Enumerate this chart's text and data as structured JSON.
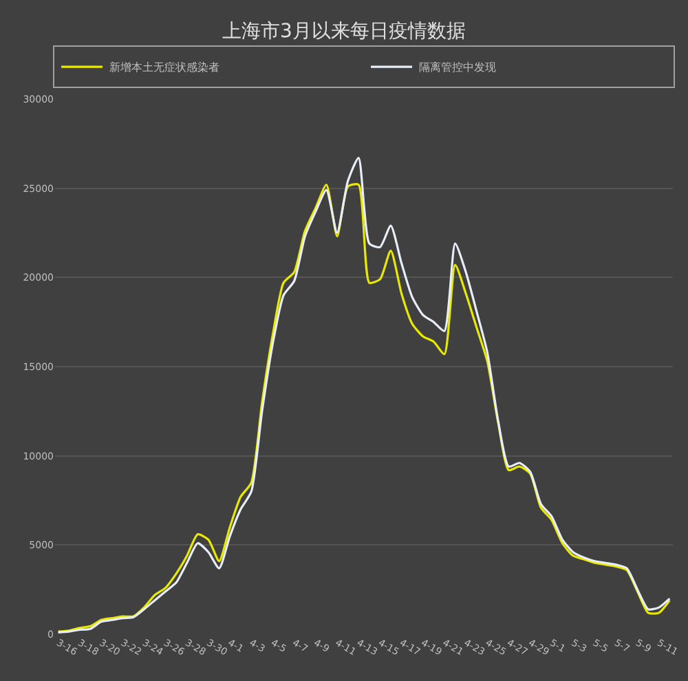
{
  "chart_data": {
    "type": "line",
    "title": "上海市3月以来每日疫情数据",
    "categories": [
      "3-16",
      null,
      "3-18",
      null,
      "3-20",
      null,
      "3-22",
      null,
      "3-24",
      null,
      "3-26",
      null,
      "3-28",
      null,
      "3-30",
      null,
      "4-1",
      null,
      "4-3",
      null,
      "4-5",
      null,
      "4-7",
      null,
      "4-9",
      null,
      "4-11",
      null,
      "4-13",
      null,
      "4-15",
      null,
      "4-17",
      null,
      "4-19",
      null,
      "4-21",
      null,
      "4-23",
      null,
      "4-25",
      null,
      "4-27",
      null,
      "4-29",
      null,
      "5-1",
      null,
      "5-3",
      null,
      "5-5",
      null,
      "5-7",
      null,
      "5-9",
      null,
      "5-11",
      null
    ],
    "series": [
      {
        "name": "新增本土无症状感染者",
        "color": "#e8e800",
        "values": [
          150,
          200,
          350,
          450,
          800,
          900,
          1000,
          1000,
          1500,
          2200,
          2600,
          3400,
          4400,
          5600,
          5300,
          4100,
          6000,
          7700,
          8500,
          13000,
          16800,
          19700,
          20300,
          22600,
          23900,
          25200,
          22300,
          25100,
          25200,
          19700,
          19900,
          21500,
          19100,
          17400,
          16700,
          16400,
          15700,
          20700,
          19100,
          17200,
          15300,
          11900,
          9200,
          9400,
          9000,
          7100,
          6400,
          5100,
          4400,
          4200,
          4000,
          3900,
          3800,
          3600,
          2400,
          1200,
          1200,
          1900
        ]
      },
      {
        "name": "隔离管控中发现",
        "color": "#e8eef8",
        "values": [
          100,
          150,
          250,
          300,
          700,
          800,
          900,
          950,
          1400,
          1900,
          2400,
          2900,
          4000,
          5100,
          4600,
          3700,
          5500,
          7000,
          8000,
          12500,
          16300,
          19000,
          19800,
          22300,
          23700,
          24900,
          22500,
          25400,
          26700,
          21900,
          21700,
          22900,
          20800,
          18900,
          17900,
          17500,
          17000,
          21900,
          20300,
          18100,
          15800,
          12000,
          9400,
          9600,
          9100,
          7300,
          6600,
          5300,
          4600,
          4300,
          4100,
          4000,
          3900,
          3700,
          2500,
          1400,
          1500,
          2000
        ]
      }
    ],
    "ylim": [
      0,
      30000
    ],
    "yticks": [
      0,
      5000,
      10000,
      15000,
      20000,
      25000,
      30000
    ],
    "grid": "y",
    "legend": "top",
    "marker": "none",
    "line_style": "solid"
  }
}
